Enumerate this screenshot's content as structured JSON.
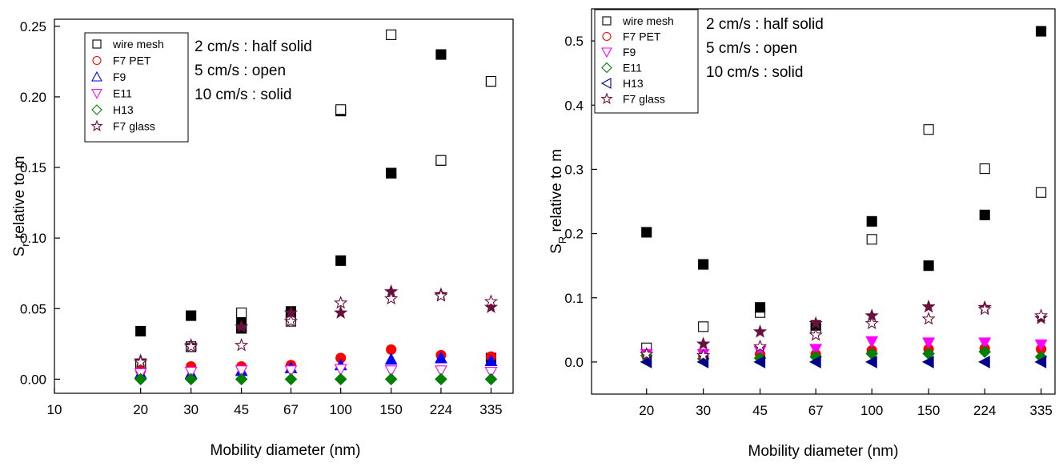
{
  "chart_data": [
    {
      "type": "scatter",
      "xlabel": "Mobility diameter (nm)",
      "ylabel_main": "S",
      "ylabel_sub": "r",
      "ylabel_rest": " relative to m",
      "x_scale": "log",
      "xlim": [
        10,
        400
      ],
      "ylim": [
        -0.01,
        0.255
      ],
      "x_ticks": [
        10,
        20,
        30,
        45,
        67,
        100,
        150,
        224,
        335
      ],
      "y_ticks": [
        0.0,
        0.05,
        0.1,
        0.15,
        0.2,
        0.25
      ],
      "y_tick_labels": [
        "0.00",
        "0.05",
        "0.10",
        "0.15",
        "0.20",
        "0.25"
      ],
      "annotations": [
        "2 cm/s : half solid",
        "5 cm/s : open",
        "10 cm/s : solid"
      ],
      "legend": [
        {
          "label": "wire mesh",
          "marker": "square",
          "color": "#000000"
        },
        {
          "label": "F7 PET",
          "marker": "circle",
          "color": "#ff0000"
        },
        {
          "label": "F9",
          "marker": "triangle-up",
          "color": "#0000ff"
        },
        {
          "label": "E11",
          "marker": "triangle-down",
          "color": "#ff00ff"
        },
        {
          "label": "H13",
          "marker": "diamond",
          "color": "#008000"
        },
        {
          "label": "F7 glass",
          "marker": "star",
          "color": "#6b0f3f"
        }
      ],
      "series": [
        {
          "name": "wire mesh",
          "marker": "square",
          "color": "#000000",
          "fill": "half",
          "x": [
            20,
            30,
            45,
            67,
            100,
            150,
            224,
            335
          ],
          "y": [
            0.01,
            0.023,
            0.036,
            0.046,
            0.19,
            0.146,
            0.155,
            0.211
          ]
        },
        {
          "name": "wire mesh",
          "marker": "square",
          "color": "#000000",
          "fill": "open",
          "x": [
            20,
            30,
            45,
            67,
            100,
            150,
            224,
            335
          ],
          "y": [
            0.01,
            0.023,
            0.047,
            0.041,
            0.191,
            0.244,
            0.155,
            0.211
          ]
        },
        {
          "name": "wire mesh",
          "marker": "square",
          "color": "#000000",
          "fill": "solid",
          "x": [
            20,
            30,
            45,
            67,
            100,
            150,
            224,
            335
          ],
          "y": [
            0.034,
            0.045,
            0.04,
            0.048,
            0.084,
            0.146,
            0.23,
            0.015
          ]
        },
        {
          "name": "F7 PET",
          "marker": "circle",
          "color": "#ff0000",
          "fill": "solid",
          "x": [
            20,
            30,
            45,
            67,
            100,
            150,
            224,
            335
          ],
          "y": [
            0.006,
            0.009,
            0.009,
            0.01,
            0.015,
            0.021,
            0.017,
            0.016
          ]
        },
        {
          "name": "F9",
          "marker": "triangle-up",
          "color": "#0000ff",
          "fill": "solid",
          "x": [
            20,
            30,
            45,
            67,
            100,
            150,
            224,
            335
          ],
          "y": [
            0.004,
            0.004,
            0.006,
            0.008,
            0.01,
            0.014,
            0.015,
            0.013
          ]
        },
        {
          "name": "E11",
          "marker": "triangle-down",
          "color": "#ff00ff",
          "fill": "open",
          "x": [
            20,
            30,
            45,
            67,
            100,
            150,
            224,
            335
          ],
          "y": [
            0.004,
            0.005,
            0.006,
            0.006,
            0.007,
            0.006,
            0.006,
            0.005
          ]
        },
        {
          "name": "H13",
          "marker": "diamond",
          "color": "#008000",
          "fill": "solid",
          "x": [
            20,
            30,
            45,
            67,
            100,
            150,
            224,
            335
          ],
          "y": [
            0.0,
            0.0,
            0.0,
            0.0,
            0.0,
            0.0,
            0.0,
            0.0
          ]
        },
        {
          "name": "F7 glass",
          "marker": "star",
          "color": "#6b0f3f",
          "fill": "solid",
          "x": [
            20,
            30,
            45,
            67,
            100,
            150,
            224,
            335
          ],
          "y": [
            0.013,
            0.024,
            0.037,
            0.047,
            0.047,
            0.062,
            0.06,
            0.051
          ]
        },
        {
          "name": "F7 glass",
          "marker": "star",
          "color": "#6b0f3f",
          "fill": "open",
          "x": [
            20,
            30,
            45,
            67,
            100,
            150,
            224,
            335
          ],
          "y": [
            0.012,
            0.023,
            0.024,
            0.041,
            0.054,
            0.057,
            0.059,
            0.055
          ]
        }
      ]
    },
    {
      "type": "scatter",
      "xlabel": "Mobility diameter (nm)",
      "ylabel_main": "S",
      "ylabel_sub": "R",
      "ylabel_rest": " relative to m",
      "x_scale": "log",
      "xlim": [
        13.5,
        370
      ],
      "ylim": [
        -0.05,
        0.55
      ],
      "x_ticks": [
        20,
        30,
        45,
        67,
        100,
        150,
        224,
        335
      ],
      "y_ticks": [
        0.0,
        0.1,
        0.2,
        0.3,
        0.4,
        0.5
      ],
      "y_tick_labels": [
        "0.0",
        "0.1",
        "0.2",
        "0.3",
        "0.4",
        "0.5"
      ],
      "annotations": [
        "2 cm/s : half solid",
        "5 cm/s : open",
        "10 cm/s : solid"
      ],
      "legend": [
        {
          "label": "wire mesh",
          "marker": "square",
          "color": "#000000"
        },
        {
          "label": "F7 PET",
          "marker": "circle",
          "color": "#ff0000"
        },
        {
          "label": "F9",
          "marker": "triangle-down",
          "color": "#ff00ff"
        },
        {
          "label": "E11",
          "marker": "diamond",
          "color": "#008000"
        },
        {
          "label": "H13",
          "marker": "triangle-left",
          "color": "#00008b"
        },
        {
          "label": "F7 glass",
          "marker": "star",
          "color": "#6b0f3f"
        }
      ],
      "series": [
        {
          "name": "wire mesh",
          "marker": "square",
          "color": "#000000",
          "fill": "open",
          "x": [
            20,
            30,
            45,
            67,
            100,
            150,
            224,
            335
          ],
          "y": [
            0.022,
            0.055,
            0.077,
            0.052,
            0.191,
            0.362,
            0.301,
            0.264
          ]
        },
        {
          "name": "wire mesh",
          "marker": "square",
          "color": "#000000",
          "fill": "solid",
          "x": [
            20,
            30,
            45,
            67,
            100,
            150,
            224,
            335
          ],
          "y": [
            0.202,
            0.152,
            0.085,
            0.057,
            0.219,
            0.15,
            0.229,
            0.515
          ]
        },
        {
          "name": "F7 PET",
          "marker": "circle",
          "color": "#ff0000",
          "fill": "solid",
          "x": [
            20,
            30,
            45,
            67,
            100,
            150,
            224,
            335
          ],
          "y": [
            0.01,
            0.01,
            0.012,
            0.012,
            0.018,
            0.02,
            0.021,
            0.02
          ]
        },
        {
          "name": "F9",
          "marker": "triangle-down",
          "color": "#ff00ff",
          "fill": "solid",
          "x": [
            20,
            30,
            45,
            67,
            100,
            150,
            224,
            335
          ],
          "y": [
            0.012,
            0.012,
            0.017,
            0.02,
            0.032,
            0.03,
            0.03,
            0.027
          ]
        },
        {
          "name": "E11",
          "marker": "diamond",
          "color": "#008000",
          "fill": "solid",
          "x": [
            20,
            30,
            45,
            67,
            100,
            150,
            224,
            335
          ],
          "y": [
            0.01,
            0.005,
            0.006,
            0.008,
            0.013,
            0.013,
            0.016,
            0.008
          ]
        },
        {
          "name": "H13",
          "marker": "triangle-left",
          "color": "#00008b",
          "fill": "solid",
          "x": [
            20,
            30,
            45,
            67,
            100,
            150,
            224,
            335
          ],
          "y": [
            0.0,
            0.0,
            0.0,
            0.0,
            0.0,
            0.0,
            0.0,
            0.0
          ]
        },
        {
          "name": "F7 glass",
          "marker": "star",
          "color": "#6b0f3f",
          "fill": "solid",
          "x": [
            20,
            30,
            45,
            67,
            100,
            150,
            224,
            335
          ],
          "y": [
            0.012,
            0.028,
            0.047,
            0.06,
            0.072,
            0.086,
            0.085,
            0.068
          ]
        },
        {
          "name": "F7 glass",
          "marker": "star",
          "color": "#6b0f3f",
          "fill": "open",
          "x": [
            20,
            30,
            45,
            67,
            100,
            150,
            224,
            335
          ],
          "y": [
            0.012,
            0.01,
            0.024,
            0.042,
            0.06,
            0.067,
            0.082,
            0.072
          ]
        }
      ]
    }
  ]
}
